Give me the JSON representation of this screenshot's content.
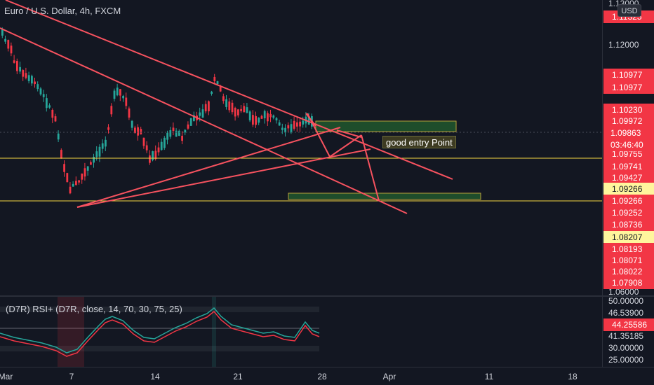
{
  "symbol": {
    "title": "Euro / U.S. Dollar, 4h, FXCM"
  },
  "currency_button": "USD",
  "price_axis": {
    "ticks": [
      "1.13000",
      "1.12000",
      "1.06000"
    ],
    "tags": [
      {
        "label": "1.11325",
        "style": "red"
      },
      {
        "label": "1.10977",
        "style": "red"
      },
      {
        "label": "1.10977",
        "style": "red"
      },
      {
        "label": "1.10230",
        "style": "red"
      },
      {
        "label": "1.09972",
        "style": "red"
      },
      {
        "label": "1.09755",
        "style": "red"
      },
      {
        "label": "1.09741",
        "style": "red"
      },
      {
        "label": "1.09427",
        "style": "red"
      },
      {
        "label": "1.09266",
        "style": "yellow"
      },
      {
        "label": "1.09266",
        "style": "red"
      },
      {
        "label": "1.09252",
        "style": "red"
      },
      {
        "label": "1.08736",
        "style": "red"
      },
      {
        "label": "1.08207",
        "style": "yellow"
      },
      {
        "label": "1.08193",
        "style": "red"
      },
      {
        "label": "1.08071",
        "style": "red"
      },
      {
        "label": "1.08022",
        "style": "red"
      },
      {
        "label": "1.07908",
        "style": "red"
      }
    ],
    "current_price": "1.09863",
    "countdown": "03:46:40"
  },
  "annotation": {
    "text": "good entry Point"
  },
  "rsi": {
    "label": "(D7R) RSI+ (D7R, close, 14, 70, 30, 75, 25)",
    "ticks": [
      "50.00000",
      "46.53900",
      "41.35185",
      "30.00000",
      "25.00000"
    ],
    "current_value": "44.25586"
  },
  "time_axis": {
    "labels": [
      "Mar",
      "7",
      "14",
      "21",
      "28",
      "Apr",
      "11",
      "18"
    ]
  },
  "colors": {
    "background": "#131722",
    "up": "#f23645",
    "down": "#f23645",
    "trendline": "#f7525f",
    "horizontal_line": "#f5d742",
    "zone_fill": "#1e4d2b",
    "zone_border": "#b8a03a"
  }
}
